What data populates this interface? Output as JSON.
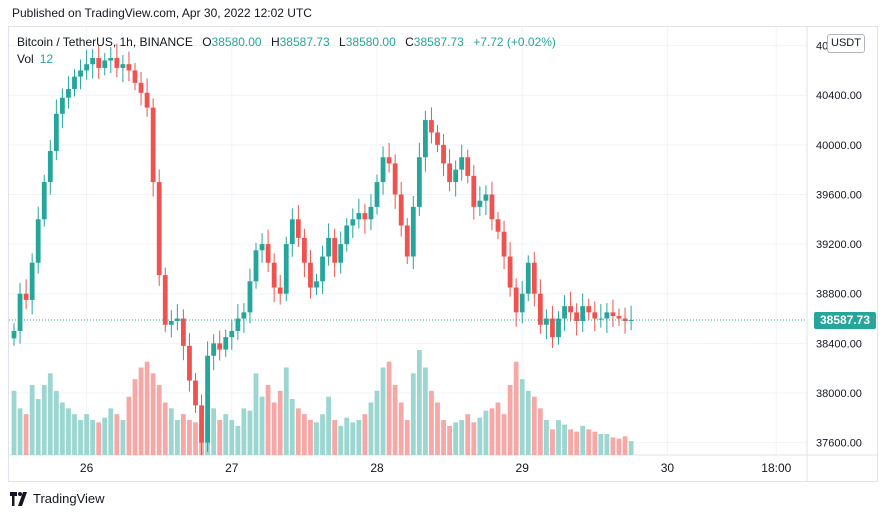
{
  "published": "Published on TradingView.com, Apr 30, 2022 12:02 UTC",
  "legend": {
    "symbol": "Bitcoin / TetherUS, 1h, BINANCE",
    "open_label": "O",
    "open": "38580.00",
    "high_label": "H",
    "high": "38587.73",
    "low_label": "L",
    "low": "38580.00",
    "close_label": "C",
    "close": "38587.73",
    "change": "+7.72 (+0.02%)",
    "vol_label": "Vol",
    "vol_value": "12"
  },
  "currency_button": "USDT",
  "last_price": "38587.73",
  "footer": {
    "brand": "TradingView"
  },
  "colors": {
    "up": "#26a69a",
    "down": "#ef5350",
    "up_vol": "#9cd6d0",
    "down_vol": "#f5a8a6",
    "grid": "#f0f3fa"
  },
  "chart_data": {
    "type": "candlestick",
    "symbol": "Bitcoin / TetherUS",
    "interval": "1h",
    "exchange": "BINANCE",
    "y_range": [
      37500,
      40950
    ],
    "y_ticks": [
      37600,
      38000,
      38400,
      38800,
      39200,
      39600,
      40000,
      40400,
      40800
    ],
    "y_tick_labels": [
      "37600.00",
      "38000.00",
      "38400.00",
      "38800.00",
      "39200.00",
      "39600.00",
      "40000.00",
      "40400.00",
      "40800.00"
    ],
    "x_tick_labels": [
      "26",
      "27",
      "28",
      "29",
      "30",
      "18:00"
    ],
    "x_tick_index": [
      12,
      36,
      60,
      84,
      108,
      126
    ],
    "last_price": 38587.73,
    "closes": [
      38500,
      38800,
      38750,
      39050,
      39400,
      39700,
      39950,
      40250,
      40380,
      40450,
      40550,
      40600,
      40650,
      40700,
      40620,
      40680,
      40700,
      40620,
      40650,
      40600,
      40500,
      40420,
      40300,
      39700,
      38950,
      38550,
      38580,
      38600,
      38380,
      38100,
      37900,
      37600,
      38300,
      38400,
      38350,
      38450,
      38500,
      38600,
      38650,
      38900,
      39150,
      39200,
      39050,
      38850,
      38800,
      39200,
      39400,
      39250,
      39050,
      38850,
      38900,
      39100,
      39250,
      39050,
      39200,
      39350,
      39400,
      39450,
      39400,
      39500,
      39700,
      39900,
      39850,
      39600,
      39350,
      39100,
      39500,
      39900,
      40200,
      40100,
      40000,
      39850,
      39700,
      39800,
      39900,
      39750,
      39500,
      39550,
      39600,
      39400,
      39300,
      39100,
      38850,
      38650,
      38800,
      39050,
      38800,
      38550,
      38600,
      38450,
      38600,
      38700,
      38650,
      38580,
      38700,
      38650,
      38600,
      38600,
      38650,
      38620,
      38600,
      38580,
      38587.73
    ],
    "volumes": [
      55,
      40,
      35,
      60,
      48,
      60,
      70,
      55,
      45,
      40,
      35,
      30,
      35,
      30,
      28,
      32,
      40,
      35,
      30,
      50,
      65,
      75,
      80,
      70,
      60,
      45,
      40,
      30,
      35,
      30,
      28,
      25,
      30,
      40,
      30,
      35,
      30,
      25,
      40,
      38,
      70,
      50,
      60,
      45,
      55,
      75,
      48,
      40,
      35,
      30,
      28,
      35,
      50,
      30,
      25,
      32,
      28,
      30,
      35,
      45,
      55,
      75,
      80,
      60,
      45,
      30,
      70,
      90,
      75,
      55,
      45,
      30,
      25,
      28,
      30,
      35,
      28,
      32,
      38,
      40,
      45,
      35,
      60,
      80,
      65,
      55,
      50,
      40,
      30,
      22,
      30,
      26,
      22,
      20,
      25,
      22,
      20,
      18,
      18,
      15,
      14,
      16,
      12
    ]
  }
}
